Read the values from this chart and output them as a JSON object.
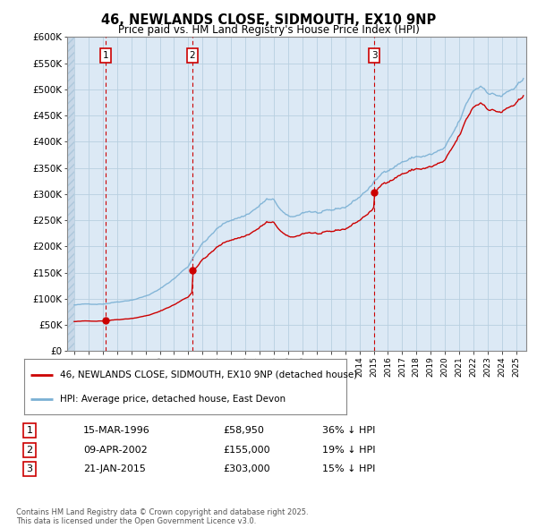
{
  "title": "46, NEWLANDS CLOSE, SIDMOUTH, EX10 9NP",
  "subtitle": "Price paid vs. HM Land Registry's House Price Index (HPI)",
  "legend_line1": "46, NEWLANDS CLOSE, SIDMOUTH, EX10 9NP (detached house)",
  "legend_line2": "HPI: Average price, detached house, East Devon",
  "footnote": "Contains HM Land Registry data © Crown copyright and database right 2025.\nThis data is licensed under the Open Government Licence v3.0.",
  "transactions": [
    {
      "num": 1,
      "date": "15-MAR-1996",
      "price": 58950,
      "pct": "36% ↓ HPI",
      "year": 1996.21
    },
    {
      "num": 2,
      "date": "09-APR-2002",
      "price": 155000,
      "pct": "19% ↓ HPI",
      "year": 2002.27
    },
    {
      "num": 3,
      "date": "21-JAN-2015",
      "price": 303000,
      "pct": "15% ↓ HPI",
      "year": 2015.05
    }
  ],
  "price_color": "#cc0000",
  "hpi_color": "#7ab0d4",
  "plot_bg_color": "#dce9f5",
  "grid_color": "#b8cfe0",
  "hatch_color": "#c8d8e8",
  "background_color": "#ffffff",
  "ylim": [
    0,
    600000
  ],
  "yticks": [
    0,
    50000,
    100000,
    150000,
    200000,
    250000,
    300000,
    350000,
    400000,
    450000,
    500000,
    550000,
    600000
  ],
  "ytick_labels": [
    "£0",
    "£50K",
    "£100K",
    "£150K",
    "£200K",
    "£250K",
    "£300K",
    "£350K",
    "£400K",
    "£450K",
    "£500K",
    "£550K",
    "£600K"
  ],
  "xlim_start": 1993.5,
  "xlim_end": 2025.7,
  "hatch_end": 1994.0
}
